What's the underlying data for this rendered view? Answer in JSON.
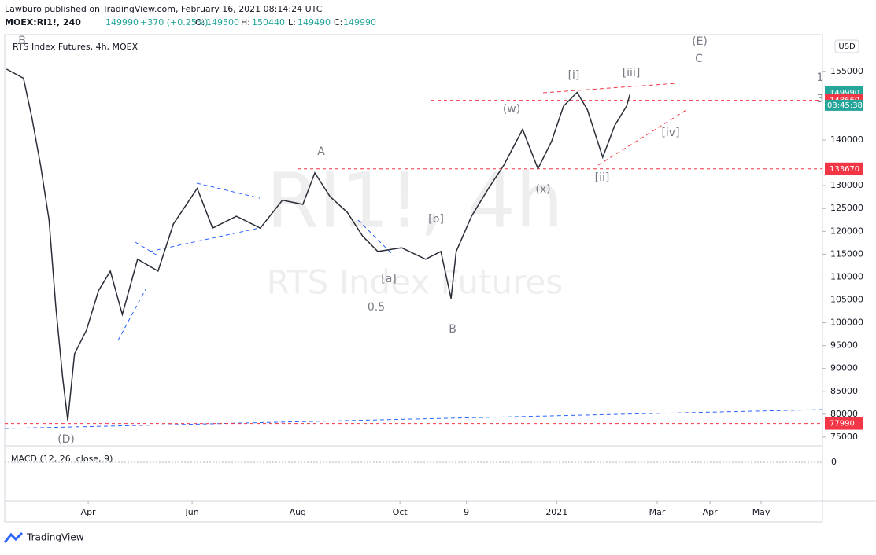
{
  "header": {
    "publisher": "Lawburo published on TradingView.com, February 16, 2021 08:14:24 UTC",
    "symbol": "MOEX:RI1!, 240",
    "last": "149990",
    "change": "+370 (+0.25%)",
    "o_label": "O:",
    "o": "149500",
    "h_label": "H:",
    "h": "150440",
    "l_label": "L:",
    "l": "149490",
    "c_label": "C:",
    "c": "149990"
  },
  "chart_data": {
    "type": "line",
    "title": "RTS Index Futures, 4h, MOEX",
    "currency": "USD",
    "x": [
      43,
      53,
      58,
      63,
      68,
      72,
      76,
      79,
      83,
      90,
      97,
      104,
      111,
      120,
      132,
      141,
      155,
      164,
      178,
      192,
      205,
      217,
      224,
      233,
      243,
      252,
      261,
      275,
      289,
      298,
      304,
      307,
      316,
      326,
      335,
      346,
      355,
      363,
      370,
      378,
      384,
      393,
      400,
      407,
      409
    ],
    "values": [
      155500,
      153500,
      144800,
      134500,
      122500,
      103500,
      88000,
      78600,
      93200,
      98400,
      107000,
      111300,
      101800,
      113900,
      111300,
      121600,
      129400,
      120700,
      123300,
      120700,
      126800,
      125900,
      132800,
      127600,
      124200,
      119000,
      115600,
      116400,
      113900,
      115600,
      105300,
      115600,
      123300,
      129400,
      134500,
      142300,
      133700,
      139700,
      147400,
      150400,
      146600,
      136200,
      143100,
      147400,
      149990
    ],
    "color": "#2a2e39",
    "xlim": [
      42,
      522
    ],
    "xticks": [
      {
        "value": 91,
        "label": "Apr"
      },
      {
        "value": 152,
        "label": "Jun"
      },
      {
        "value": 214,
        "label": "Aug"
      },
      {
        "value": 274,
        "label": "Oct"
      },
      {
        "value": 313,
        "label": "9"
      },
      {
        "value": 366,
        "label": "2021"
      },
      {
        "value": 425,
        "label": "Mar"
      },
      {
        "value": 456,
        "label": "Apr"
      },
      {
        "value": 486,
        "label": "May"
      }
    ],
    "ylim": [
      73100,
      162700
    ],
    "yticks": [
      155000,
      140000,
      130000,
      125000,
      120000,
      115000,
      110000,
      105000,
      100000,
      95000,
      90000,
      85000,
      80000,
      75000
    ],
    "levels": [
      {
        "value": 149990,
        "color": "#26a69a"
      },
      {
        "value": 148660,
        "color": "#f23645"
      },
      {
        "value": 133670,
        "color": "#f23645"
      },
      {
        "value": 77990,
        "color": "#f23645"
      }
    ],
    "countdown": "03:45:38",
    "macd_title": "MACD (12, 26, close, 9)",
    "macd_zero": "0",
    "watermark": [
      "RI1!, 4h",
      "RTS Index Futures"
    ],
    "annotations": [
      "B",
      "(D)",
      "A",
      "[a]",
      "[b]",
      "0.5",
      "B",
      "(x)",
      "(w)",
      "[i]",
      "[ii]",
      "[iii]",
      "[iv]",
      "(E)",
      "C",
      "1",
      "3"
    ]
  },
  "footer": "TradingView"
}
